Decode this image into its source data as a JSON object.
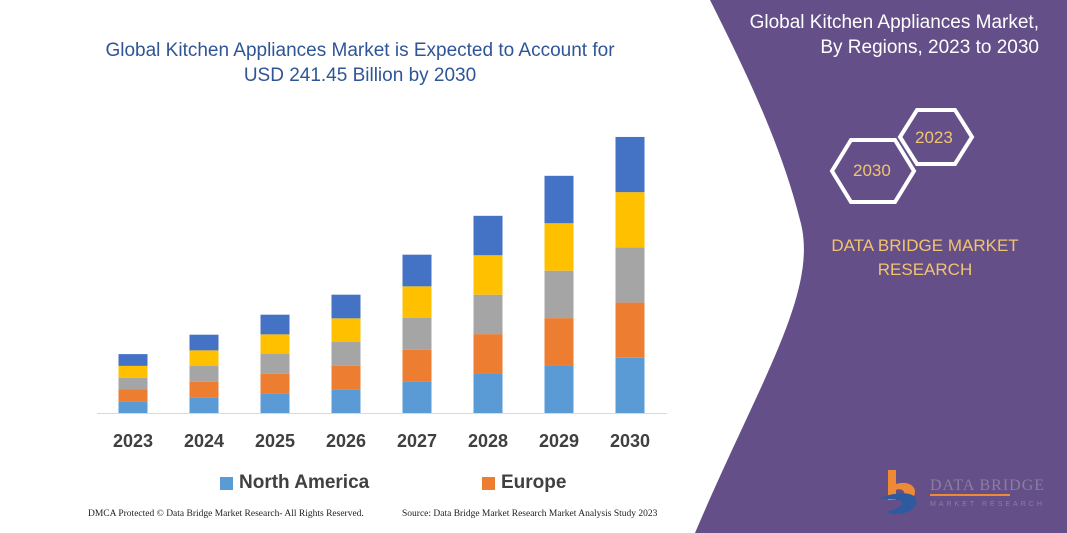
{
  "title_lines": [
    "Global Kitchen Appliances Market is Expected to Account for",
    "USD 241.45 Billion by 2030"
  ],
  "side_panel": {
    "title_lines": [
      "Global Kitchen Appliances Market,",
      "By Regions, 2023 to 2030"
    ],
    "hex_left": "2030",
    "hex_right": "2023",
    "brand_lines": [
      "DATA BRIDGE MARKET",
      "RESEARCH"
    ],
    "logo_text": "DATA BRIDGE MARKET RESEARCH",
    "color": "#644f88"
  },
  "footer": {
    "left": "DMCA Protected © Data Bridge Market Research- All Rights Reserved.",
    "right": "Source: Data Bridge Market Research Market Analysis Study 2023"
  },
  "chart_data": {
    "type": "bar",
    "stacked": true,
    "categories": [
      "2023",
      "2024",
      "2025",
      "2026",
      "2027",
      "2028",
      "2029",
      "2030"
    ],
    "series": [
      {
        "name": "North America",
        "color": "#5b9bd5",
        "values": [
          10.3,
          13.7,
          17.2,
          20.7,
          27.7,
          34.5,
          41.5,
          48.3
        ]
      },
      {
        "name": "Europe",
        "color": "#ed7d31",
        "values": [
          10.3,
          13.7,
          17.2,
          20.7,
          27.7,
          34.5,
          41.5,
          48.3
        ]
      },
      {
        "color": "#a5a5a5",
        "values": [
          10.3,
          13.7,
          17.2,
          20.7,
          27.7,
          34.5,
          41.5,
          48.3
        ]
      },
      {
        "color": "#ffc000",
        "values": [
          10.3,
          13.7,
          17.2,
          20.7,
          27.7,
          34.5,
          41.5,
          48.3
        ]
      },
      {
        "color": "#4472c4",
        "values": [
          10.3,
          13.7,
          17.2,
          20.7,
          27.7,
          34.5,
          41.5,
          48.3
        ]
      }
    ],
    "ylim": [
      0,
      241.45
    ],
    "grid": false,
    "legend": "bottom"
  }
}
